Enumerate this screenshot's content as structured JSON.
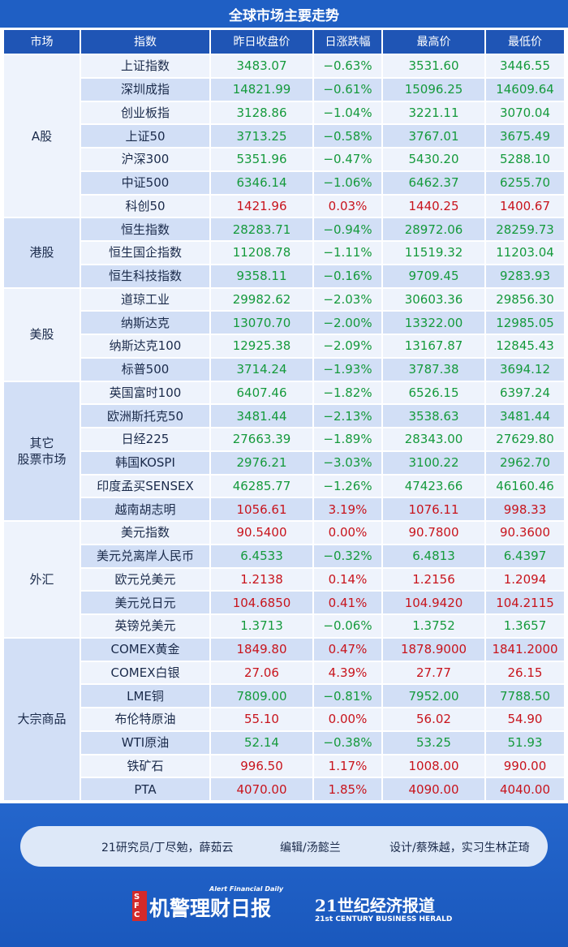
{
  "header": {
    "title": "全球市场主要走势"
  },
  "table": {
    "columns": [
      "市场",
      "指数",
      "昨日收盘价",
      "日涨跌幅",
      "最高价",
      "最低价"
    ],
    "groups": [
      {
        "market": "A股",
        "rows": [
          [
            "上证指数",
            "3483.07",
            "−0.63%",
            "3531.60",
            "3446.55"
          ],
          [
            "深圳成指",
            "14821.99",
            "−0.61%",
            "15096.25",
            "14609.64"
          ],
          [
            "创业板指",
            "3128.86",
            "−1.04%",
            "3221.11",
            "3070.04"
          ],
          [
            "上证50",
            "3713.25",
            "−0.58%",
            "3767.01",
            "3675.49"
          ],
          [
            "沪深300",
            "5351.96",
            "−0.47%",
            "5430.20",
            "5288.10"
          ],
          [
            "中证500",
            "6346.14",
            "−1.06%",
            "6462.37",
            "6255.70"
          ],
          [
            "科创50",
            "1421.96",
            "0.03%",
            "1440.25",
            "1400.67"
          ]
        ]
      },
      {
        "market": "港股",
        "rows": [
          [
            "恒生指数",
            "28283.71",
            "−0.94%",
            "28972.06",
            "28259.73"
          ],
          [
            "恒生国企指数",
            "11208.78",
            "−1.11%",
            "11519.32",
            "11203.04"
          ],
          [
            "恒生科技指数",
            "9358.11",
            "−0.16%",
            "9709.45",
            "9283.93"
          ]
        ]
      },
      {
        "market": "美股",
        "rows": [
          [
            "道琼工业",
            "29982.62",
            "−2.03%",
            "30603.36",
            "29856.30"
          ],
          [
            "纳斯达克",
            "13070.70",
            "−2.00%",
            "13322.00",
            "12985.05"
          ],
          [
            "纳斯达克100",
            "12925.38",
            "−2.09%",
            "13167.87",
            "12845.43"
          ],
          [
            "标普500",
            "3714.24",
            "−1.93%",
            "3787.38",
            "3694.12"
          ]
        ]
      },
      {
        "market": "其它\n股票市场",
        "rows": [
          [
            "英国富时100",
            "6407.46",
            "−1.82%",
            "6526.15",
            "6397.24"
          ],
          [
            "欧洲斯托克50",
            "3481.44",
            "−2.13%",
            "3538.63",
            "3481.44"
          ],
          [
            "日经225",
            "27663.39",
            "−1.89%",
            "28343.00",
            "27629.80"
          ],
          [
            "韩国KOSPI",
            "2976.21",
            "−3.03%",
            "3100.22",
            "2962.70"
          ],
          [
            "印度孟买SENSEX",
            "46285.77",
            "−1.26%",
            "47423.66",
            "46160.46"
          ],
          [
            "越南胡志明",
            "1056.61",
            "3.19%",
            "1076.11",
            "998.33"
          ]
        ]
      },
      {
        "market": "外汇",
        "rows": [
          [
            "美元指数",
            "90.5400",
            "0.00%",
            "90.7800",
            "90.3600"
          ],
          [
            "美元兑离岸人民币",
            "6.4533",
            "−0.32%",
            "6.4813",
            "6.4397"
          ],
          [
            "欧元兑美元",
            "1.2138",
            "0.14%",
            "1.2156",
            "1.2094"
          ],
          [
            "美元兑日元",
            "104.6850",
            "0.41%",
            "104.9420",
            "104.2115"
          ],
          [
            "英镑兑美元",
            "1.3713",
            "−0.06%",
            "1.3752",
            "1.3657"
          ]
        ]
      },
      {
        "market": "大宗商品",
        "rows": [
          [
            "COMEX黄金",
            "1849.80",
            "0.47%",
            "1878.9000",
            "1841.2000"
          ],
          [
            "COMEX白银",
            "27.06",
            "4.39%",
            "27.77",
            "26.15"
          ],
          [
            "LME铜",
            "7809.00",
            "−0.81%",
            "7952.00",
            "7788.50"
          ],
          [
            "布伦特原油",
            "55.10",
            "0.00%",
            "56.02",
            "54.90"
          ],
          [
            "WTI原油",
            "52.14",
            "−0.38%",
            "53.25",
            "51.93"
          ],
          [
            "铁矿石",
            "996.50",
            "1.17%",
            "1008.00",
            "990.00"
          ],
          [
            "PTA",
            "4070.00",
            "1.85%",
            "4090.00",
            "4040.00"
          ]
        ]
      }
    ]
  },
  "footer": {
    "credits": [
      "21研究员/丁尽勉，薛茹云",
      "编辑/汤懿兰",
      "设计/蔡殊越，实习生林芷琦"
    ],
    "logo1": {
      "badge": "SFC",
      "name": "机警理财日报",
      "en": "Alert Financial Daily"
    },
    "logo2": {
      "name": "21世纪经济报道",
      "en": "21st CENTURY BUSINESS HERALD"
    }
  }
}
